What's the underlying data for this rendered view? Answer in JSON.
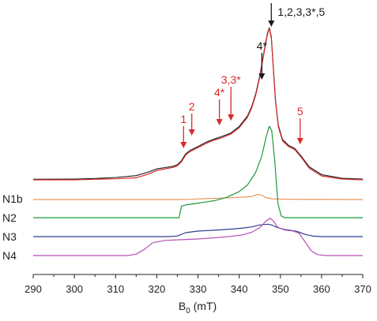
{
  "chart_data": {
    "type": "line",
    "title": "",
    "xlabel_main": "B",
    "xlabel_sub": "0",
    "xlabel_unit": " (mT)",
    "xlim": [
      290,
      370
    ],
    "x_ticks": [
      "290",
      "300",
      "310",
      "320",
      "330",
      "340",
      "350",
      "360",
      "370"
    ],
    "grid": false,
    "colors": {
      "axis": "#231f20",
      "black": "#1a1a1a",
      "red": "#d62b2b",
      "orange": "#e8955a",
      "green": "#1e9a3c",
      "blue": "#2e3f8f",
      "magenta": "#b54fb8"
    },
    "series": [
      {
        "name": "",
        "color": "black",
        "points": [
          [
            290,
            0.02
          ],
          [
            300,
            0.03
          ],
          [
            305,
            0.05
          ],
          [
            310,
            0.09
          ],
          [
            315,
            0.16
          ],
          [
            318,
            0.3
          ],
          [
            320,
            0.42
          ],
          [
            322,
            0.47
          ],
          [
            324,
            0.52
          ],
          [
            325,
            0.58
          ],
          [
            326,
            0.74
          ],
          [
            327,
            1.0
          ],
          [
            328,
            1.12
          ],
          [
            330,
            1.28
          ],
          [
            332,
            1.45
          ],
          [
            334,
            1.57
          ],
          [
            336,
            1.68
          ],
          [
            338,
            1.8
          ],
          [
            340,
            2.05
          ],
          [
            342,
            2.45
          ],
          [
            343,
            2.8
          ],
          [
            344,
            3.3
          ],
          [
            345,
            4.0
          ],
          [
            346,
            4.9
          ],
          [
            346.8,
            5.6
          ],
          [
            347.3,
            5.85
          ],
          [
            347.8,
            5.5
          ],
          [
            348.3,
            4.3
          ],
          [
            348.8,
            3.1
          ],
          [
            349.5,
            2.1
          ],
          [
            350.5,
            1.55
          ],
          [
            352,
            1.32
          ],
          [
            353.5,
            1.2
          ],
          [
            355,
            0.92
          ],
          [
            357,
            0.5
          ],
          [
            360,
            0.2
          ],
          [
            365,
            0.06
          ],
          [
            370,
            0.03
          ]
        ]
      },
      {
        "name": "",
        "color": "red",
        "points": [
          [
            290,
            0.0
          ],
          [
            300,
            0.0
          ],
          [
            305,
            0.02
          ],
          [
            310,
            0.04
          ],
          [
            315,
            0.08
          ],
          [
            318,
            0.22
          ],
          [
            320,
            0.36
          ],
          [
            322,
            0.42
          ],
          [
            324,
            0.48
          ],
          [
            325,
            0.54
          ],
          [
            326,
            0.7
          ],
          [
            327,
            0.95
          ],
          [
            328,
            1.08
          ],
          [
            330,
            1.24
          ],
          [
            332,
            1.4
          ],
          [
            334,
            1.53
          ],
          [
            336,
            1.63
          ],
          [
            338,
            1.76
          ],
          [
            340,
            2.0
          ],
          [
            342,
            2.4
          ],
          [
            343,
            2.75
          ],
          [
            344,
            3.25
          ],
          [
            345,
            3.95
          ],
          [
            346,
            4.85
          ],
          [
            346.8,
            5.55
          ],
          [
            347.3,
            5.82
          ],
          [
            347.8,
            5.45
          ],
          [
            348.3,
            4.25
          ],
          [
            348.8,
            3.05
          ],
          [
            349.5,
            2.05
          ],
          [
            350.5,
            1.5
          ],
          [
            352,
            1.28
          ],
          [
            353.5,
            1.16
          ],
          [
            355,
            0.88
          ],
          [
            357,
            0.45
          ],
          [
            360,
            0.15
          ],
          [
            365,
            0.03
          ],
          [
            370,
            0.0
          ]
        ]
      },
      {
        "name": "N1b",
        "color": "orange",
        "points": [
          [
            290,
            0
          ],
          [
            325,
            0
          ],
          [
            328,
            0.1
          ],
          [
            332,
            0.4
          ],
          [
            336,
            0.6
          ],
          [
            340,
            0.95
          ],
          [
            343,
            1.3
          ],
          [
            344.5,
            2.2
          ],
          [
            345.5,
            1.8
          ],
          [
            346.5,
            0.8
          ],
          [
            348,
            0.3
          ],
          [
            352,
            0.1
          ],
          [
            370,
            0
          ]
        ]
      },
      {
        "name": "N2",
        "color": "green",
        "points": [
          [
            290,
            0
          ],
          [
            325.4,
            0
          ],
          [
            326.0,
            3.2
          ],
          [
            327,
            3.5
          ],
          [
            330,
            4.0
          ],
          [
            334,
            4.7
          ],
          [
            337,
            5.6
          ],
          [
            340,
            7.2
          ],
          [
            342,
            9.0
          ],
          [
            344,
            12.5
          ],
          [
            345.5,
            17.0
          ],
          [
            346.6,
            22.5
          ],
          [
            347.3,
            25.2
          ],
          [
            347.9,
            24.0
          ],
          [
            348.6,
            16.0
          ],
          [
            349.4,
            4.0
          ],
          [
            350.2,
            0.5
          ],
          [
            351,
            0
          ],
          [
            370,
            0
          ]
        ]
      },
      {
        "name": "N3",
        "color": "blue",
        "points": [
          [
            290,
            0
          ],
          [
            323,
            0
          ],
          [
            325,
            0.3
          ],
          [
            327,
            1.8
          ],
          [
            330,
            2.5
          ],
          [
            334,
            2.9
          ],
          [
            338,
            3.4
          ],
          [
            341,
            3.9
          ],
          [
            343,
            4.4
          ],
          [
            345,
            5.3
          ],
          [
            347,
            5.6
          ],
          [
            348,
            5.2
          ],
          [
            349,
            4.3
          ],
          [
            351,
            3.2
          ],
          [
            352,
            3.0
          ],
          [
            354,
            2.4
          ],
          [
            356,
            1.0
          ],
          [
            358,
            0.2
          ],
          [
            360,
            0
          ],
          [
            370,
            0
          ]
        ]
      },
      {
        "name": "N4",
        "color": "magenta",
        "points": [
          [
            290,
            0
          ],
          [
            313,
            0
          ],
          [
            315,
            0.6
          ],
          [
            317,
            2.6
          ],
          [
            319,
            5.4
          ],
          [
            322,
            6.4
          ],
          [
            326,
            6.7
          ],
          [
            330,
            7.0
          ],
          [
            334,
            7.5
          ],
          [
            338,
            8.1
          ],
          [
            341,
            8.8
          ],
          [
            343,
            9.8
          ],
          [
            345,
            11.8
          ],
          [
            346.5,
            14.5
          ],
          [
            347.5,
            15.8
          ],
          [
            348.3,
            14.6
          ],
          [
            349.3,
            12.0
          ],
          [
            351,
            10.8
          ],
          [
            353,
            10.4
          ],
          [
            354.5,
            9.5
          ],
          [
            356,
            5.8
          ],
          [
            357.5,
            2.0
          ],
          [
            359,
            0.4
          ],
          [
            361,
            0
          ],
          [
            370,
            0
          ]
        ]
      }
    ],
    "annotations": [
      {
        "text": "1",
        "color": "red",
        "x": 326.5,
        "target": 0
      },
      {
        "text": "2",
        "color": "red",
        "x": 328.5,
        "target": 1
      },
      {
        "text": "4*",
        "color": "red",
        "x": 335.2,
        "target": 1
      },
      {
        "text": "3,3*",
        "color": "red",
        "x": 338,
        "target": 1
      },
      {
        "text": "4*",
        "color": "black",
        "x": 345.5,
        "target": 0
      },
      {
        "text": "1,2,3,3*,5",
        "color": "black",
        "x": 347.8,
        "target": 0
      },
      {
        "text": "5",
        "color": "red",
        "x": 354.8,
        "target": 0
      }
    ]
  }
}
